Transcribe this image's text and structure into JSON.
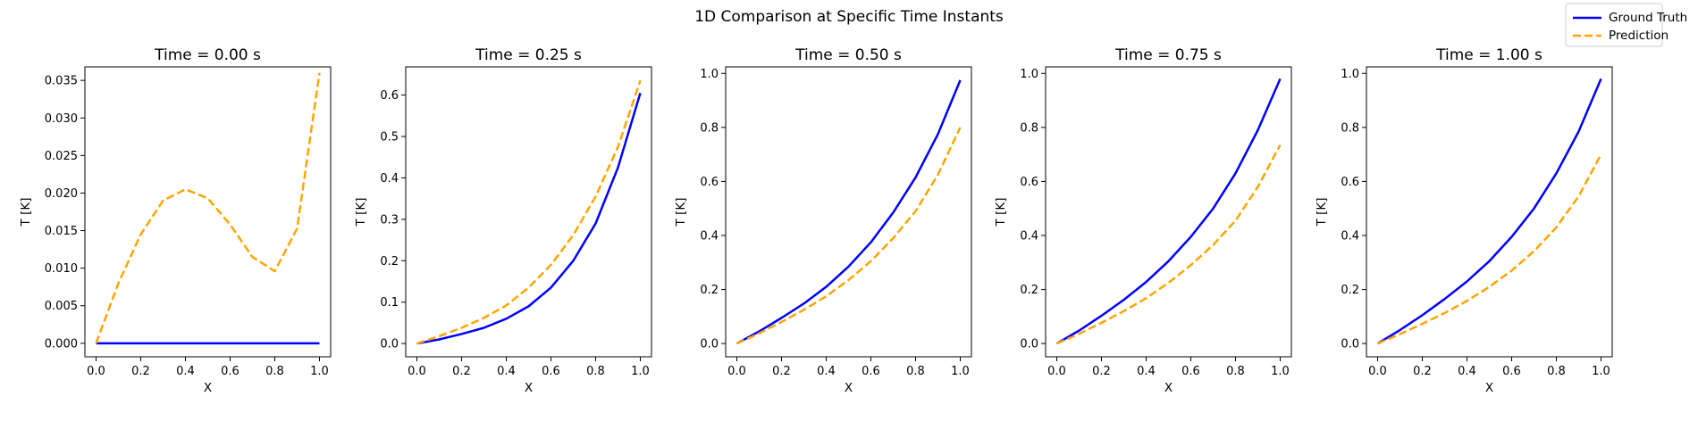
{
  "figure": {
    "title": "1D Comparison at Specific Time Instants"
  },
  "legend": {
    "placement": "top-right",
    "entries": [
      {
        "name": "Ground Truth",
        "color": "#0000ff",
        "style": "solid"
      },
      {
        "name": "Prediction",
        "color": "#ffa500",
        "style": "dashed"
      }
    ]
  },
  "chart_data": [
    {
      "type": "line",
      "title": "Time = 0.00 s",
      "xlabel": "X",
      "ylabel": "T [K]",
      "xlim": [
        -0.05,
        1.05
      ],
      "ylim": [
        -0.0018,
        0.0368
      ],
      "xticks": [
        0.0,
        0.2,
        0.4,
        0.6,
        0.8,
        1.0
      ],
      "xtick_labels": [
        "0.0",
        "0.2",
        "0.4",
        "0.6",
        "0.8",
        "1.0"
      ],
      "yticks": [
        0.0,
        0.005,
        0.01,
        0.015,
        0.02,
        0.025,
        0.03,
        0.035
      ],
      "ytick_labels": [
        "0.000",
        "0.005",
        "0.010",
        "0.015",
        "0.020",
        "0.025",
        "0.030",
        "0.035"
      ],
      "x": [
        0.0,
        0.1,
        0.2,
        0.3,
        0.4,
        0.5,
        0.6,
        0.7,
        0.8,
        0.9,
        1.0
      ],
      "series": [
        {
          "name": "Ground Truth",
          "color": "#0000ff",
          "dash": "solid",
          "values": [
            0,
            0,
            0,
            0,
            0,
            0,
            0,
            0,
            0,
            0,
            0
          ]
        },
        {
          "name": "Prediction",
          "color": "#ffa500",
          "dash": "dashed",
          "values": [
            0.0,
            0.008,
            0.0145,
            0.019,
            0.0205,
            0.0193,
            0.0158,
            0.0115,
            0.0096,
            0.0153,
            0.036
          ]
        }
      ]
    },
    {
      "type": "line",
      "title": "Time = 0.25 s",
      "xlabel": "X",
      "ylabel": "T [K]",
      "xlim": [
        -0.05,
        1.05
      ],
      "ylim": [
        -0.032,
        0.668
      ],
      "xticks": [
        0.0,
        0.2,
        0.4,
        0.6,
        0.8,
        1.0
      ],
      "xtick_labels": [
        "0.0",
        "0.2",
        "0.4",
        "0.6",
        "0.8",
        "1.0"
      ],
      "yticks": [
        0.0,
        0.1,
        0.2,
        0.3,
        0.4,
        0.5,
        0.6
      ],
      "ytick_labels": [
        "0.0",
        "0.1",
        "0.2",
        "0.3",
        "0.4",
        "0.5",
        "0.6"
      ],
      "x": [
        0.0,
        0.1,
        0.2,
        0.3,
        0.4,
        0.5,
        0.6,
        0.7,
        0.8,
        0.9,
        1.0
      ],
      "series": [
        {
          "name": "Ground Truth",
          "color": "#0000ff",
          "dash": "solid",
          "values": [
            0.0,
            0.01,
            0.023,
            0.038,
            0.06,
            0.09,
            0.135,
            0.2,
            0.29,
            0.425,
            0.605
          ]
        },
        {
          "name": "Prediction",
          "color": "#ffa500",
          "dash": "dashed",
          "values": [
            0.0,
            0.018,
            0.038,
            0.062,
            0.092,
            0.135,
            0.19,
            0.262,
            0.355,
            0.475,
            0.635
          ]
        }
      ]
    },
    {
      "type": "line",
      "title": "Time = 0.50 s",
      "xlabel": "X",
      "ylabel": "T [K]",
      "xlim": [
        -0.05,
        1.05
      ],
      "ylim": [
        -0.049,
        1.024
      ],
      "xticks": [
        0.0,
        0.2,
        0.4,
        0.6,
        0.8,
        1.0
      ],
      "xtick_labels": [
        "0.0",
        "0.2",
        "0.4",
        "0.6",
        "0.8",
        "1.0"
      ],
      "yticks": [
        0.0,
        0.2,
        0.4,
        0.6,
        0.8,
        1.0
      ],
      "ytick_labels": [
        "0.0",
        "0.2",
        "0.4",
        "0.6",
        "0.8",
        "1.0"
      ],
      "x": [
        0.0,
        0.1,
        0.2,
        0.3,
        0.4,
        0.5,
        0.6,
        0.7,
        0.8,
        0.9,
        1.0
      ],
      "series": [
        {
          "name": "Ground Truth",
          "color": "#0000ff",
          "dash": "solid",
          "values": [
            0.0,
            0.045,
            0.095,
            0.148,
            0.21,
            0.285,
            0.375,
            0.485,
            0.615,
            0.775,
            0.975
          ]
        },
        {
          "name": "Prediction",
          "color": "#ffa500",
          "dash": "dashed",
          "values": [
            0.0,
            0.038,
            0.08,
            0.125,
            0.175,
            0.235,
            0.305,
            0.39,
            0.49,
            0.625,
            0.8
          ]
        }
      ]
    },
    {
      "type": "line",
      "title": "Time = 0.75 s",
      "xlabel": "X",
      "ylabel": "T [K]",
      "xlim": [
        -0.05,
        1.05
      ],
      "ylim": [
        -0.049,
        1.024
      ],
      "xticks": [
        0.0,
        0.2,
        0.4,
        0.6,
        0.8,
        1.0
      ],
      "xtick_labels": [
        "0.0",
        "0.2",
        "0.4",
        "0.6",
        "0.8",
        "1.0"
      ],
      "yticks": [
        0.0,
        0.2,
        0.4,
        0.6,
        0.8,
        1.0
      ],
      "ytick_labels": [
        "0.0",
        "0.2",
        "0.4",
        "0.6",
        "0.8",
        "1.0"
      ],
      "x": [
        0.0,
        0.1,
        0.2,
        0.3,
        0.4,
        0.5,
        0.6,
        0.7,
        0.8,
        0.9,
        1.0
      ],
      "series": [
        {
          "name": "Ground Truth",
          "color": "#0000ff",
          "dash": "solid",
          "values": [
            0.0,
            0.048,
            0.103,
            0.162,
            0.228,
            0.305,
            0.395,
            0.5,
            0.63,
            0.79,
            0.98
          ]
        },
        {
          "name": "Prediction",
          "color": "#ffa500",
          "dash": "dashed",
          "values": [
            0.0,
            0.036,
            0.077,
            0.12,
            0.168,
            0.225,
            0.29,
            0.365,
            0.455,
            0.58,
            0.735
          ]
        }
      ]
    },
    {
      "type": "line",
      "title": "Time = 1.00 s",
      "xlabel": "X",
      "ylabel": "T [K]",
      "xlim": [
        -0.05,
        1.05
      ],
      "ylim": [
        -0.049,
        1.024
      ],
      "xticks": [
        0.0,
        0.2,
        0.4,
        0.6,
        0.8,
        1.0
      ],
      "xtick_labels": [
        "0.0",
        "0.2",
        "0.4",
        "0.6",
        "0.8",
        "1.0"
      ],
      "yticks": [
        0.0,
        0.2,
        0.4,
        0.6,
        0.8,
        1.0
      ],
      "ytick_labels": [
        "0.0",
        "0.2",
        "0.4",
        "0.6",
        "0.8",
        "1.0"
      ],
      "x": [
        0.0,
        0.1,
        0.2,
        0.3,
        0.4,
        0.5,
        0.6,
        0.7,
        0.8,
        0.9,
        1.0
      ],
      "series": [
        {
          "name": "Ground Truth",
          "color": "#0000ff",
          "dash": "solid",
          "values": [
            0.0,
            0.05,
            0.105,
            0.165,
            0.23,
            0.305,
            0.395,
            0.5,
            0.63,
            0.785,
            0.98
          ]
        },
        {
          "name": "Prediction",
          "color": "#ffa500",
          "dash": "dashed",
          "values": [
            0.0,
            0.035,
            0.073,
            0.113,
            0.158,
            0.21,
            0.27,
            0.342,
            0.43,
            0.545,
            0.7
          ]
        }
      ]
    }
  ]
}
